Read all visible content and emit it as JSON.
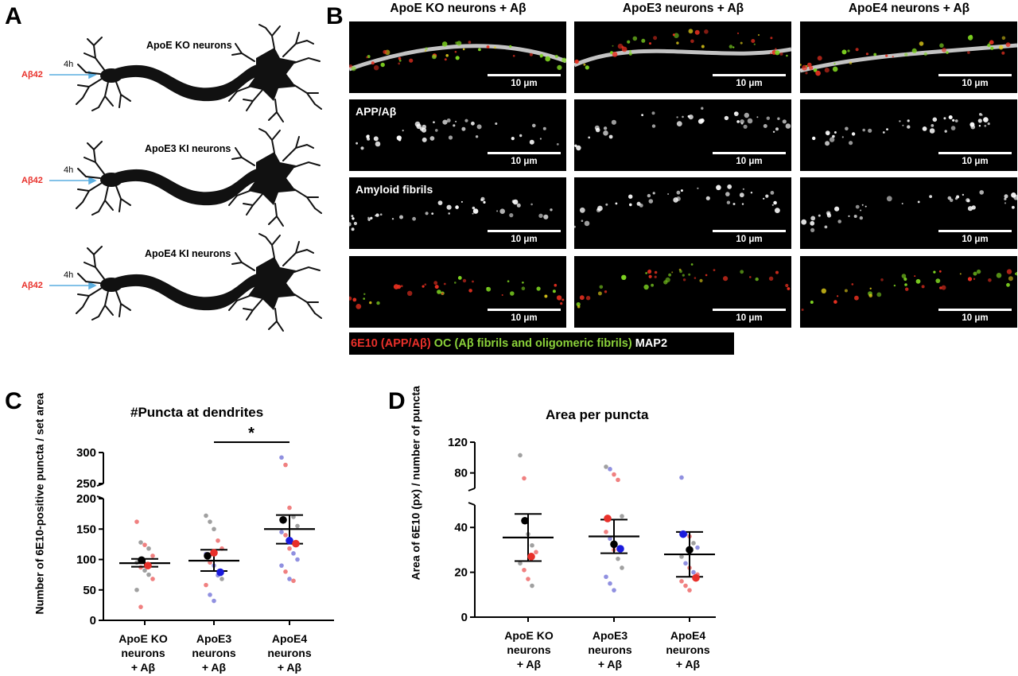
{
  "panelA": {
    "letter": "A",
    "rows": [
      {
        "treatment": "Aβ42",
        "time": "4h",
        "label": "ApoE KO neurons"
      },
      {
        "treatment": "Aβ42",
        "time": "4h",
        "label": "ApoE3 KI neurons"
      },
      {
        "treatment": "Aβ42",
        "time": "4h",
        "label": "ApoE4 KI neurons"
      }
    ]
  },
  "panelB": {
    "letter": "B",
    "columns": [
      "ApoE KO neurons + Aβ",
      "ApoE3 neurons + Aβ",
      "ApoE4 neurons + Aβ"
    ],
    "row_labels": [
      "",
      "APP/Aβ",
      "Amyloid fibrils",
      ""
    ],
    "scale_bar": "10 μm",
    "legend": [
      {
        "text": "6E10 (APP/Aβ)",
        "color": "#e8302a"
      },
      {
        "text": "OC (Aβ fibrils and oligomeric fibrils)",
        "color": "#8bd23a"
      },
      {
        "text": "MAP2",
        "color": "#ffffff"
      }
    ]
  },
  "panelC": {
    "letter": "C",
    "significance": "*",
    "chart_data": {
      "type": "scatter",
      "title": "#Puncta at dendrites",
      "ylabel": "Number of 6E10-positive puncta / set area",
      "categories": [
        "ApoE KO neurons + Aβ",
        "ApoE3 neurons + Aβ",
        "ApoE4 neurons + Aβ"
      ],
      "category_lines": [
        [
          "ApoE KO",
          "neurons",
          "+ Aβ"
        ],
        [
          "ApoE3",
          "neurons",
          "+ Aβ"
        ],
        [
          "ApoE4",
          "neurons",
          "+ Aβ"
        ]
      ],
      "y_axis_broken": true,
      "ylim_lower": [
        0,
        200
      ],
      "ylim_upper": [
        250,
        300
      ],
      "yticks_lower": [
        0,
        50,
        100,
        150,
        200
      ],
      "yticks_upper": [
        250,
        300
      ],
      "mean": [
        94,
        98,
        150
      ],
      "error_upper": [
        101,
        116,
        173
      ],
      "error_lower": [
        88,
        81,
        126
      ],
      "replicate_means": [
        [
          {
            "value": 99,
            "color": "#000000"
          },
          {
            "value": 90,
            "color": "#e8302a"
          }
        ],
        [
          {
            "value": 106,
            "color": "#000000"
          },
          {
            "value": 111,
            "color": "#e8302a"
          },
          {
            "value": 79,
            "color": "#1a1adc"
          }
        ],
        [
          {
            "value": 165,
            "color": "#000000"
          },
          {
            "value": 131,
            "color": "#1a1adc"
          },
          {
            "value": 126,
            "color": "#e8302a"
          }
        ]
      ],
      "points": [
        [
          {
            "value": 162,
            "color": "#f08080"
          },
          {
            "value": 128,
            "color": "#a0a0a0"
          },
          {
            "value": 124,
            "color": "#f08080"
          },
          {
            "value": 118,
            "color": "#a0a0a0"
          },
          {
            "value": 106,
            "color": "#f08080"
          },
          {
            "value": 95,
            "color": "#a0a0a0"
          },
          {
            "value": 87,
            "color": "#f08080"
          },
          {
            "value": 82,
            "color": "#a0a0a0"
          },
          {
            "value": 75,
            "color": "#a0a0a0"
          },
          {
            "value": 68,
            "color": "#f08080"
          },
          {
            "value": 50,
            "color": "#a0a0a0"
          },
          {
            "value": 22,
            "color": "#f08080"
          }
        ],
        [
          {
            "value": 172,
            "color": "#a0a0a0"
          },
          {
            "value": 162,
            "color": "#a0a0a0"
          },
          {
            "value": 150,
            "color": "#a0a0a0"
          },
          {
            "value": 131,
            "color": "#f08080"
          },
          {
            "value": 118,
            "color": "#f08080"
          },
          {
            "value": 109,
            "color": "#9090e0"
          },
          {
            "value": 95,
            "color": "#f08080"
          },
          {
            "value": 90,
            "color": "#9090e0"
          },
          {
            "value": 74,
            "color": "#9090e0"
          },
          {
            "value": 68,
            "color": "#a0a0a0"
          },
          {
            "value": 58,
            "color": "#f08080"
          },
          {
            "value": 42,
            "color": "#9090e0"
          },
          {
            "value": 32,
            "color": "#9090e0"
          }
        ],
        [
          {
            "value": 292,
            "color": "#9090e0"
          },
          {
            "value": 280,
            "color": "#f08080"
          },
          {
            "value": 185,
            "color": "#f08080"
          },
          {
            "value": 170,
            "color": "#a0a0a0"
          },
          {
            "value": 155,
            "color": "#a0a0a0"
          },
          {
            "value": 145,
            "color": "#9090e0"
          },
          {
            "value": 140,
            "color": "#f08080"
          },
          {
            "value": 118,
            "color": "#f08080"
          },
          {
            "value": 110,
            "color": "#9090e0"
          },
          {
            "value": 100,
            "color": "#9090e0"
          },
          {
            "value": 90,
            "color": "#9090e0"
          },
          {
            "value": 80,
            "color": "#f08080"
          },
          {
            "value": 68,
            "color": "#9090e0"
          },
          {
            "value": 65,
            "color": "#f08080"
          }
        ]
      ]
    }
  },
  "panelD": {
    "letter": "D",
    "chart_data": {
      "type": "scatter",
      "title": "Area per puncta",
      "ylabel": "Area of 6E10 (px) / number of puncta",
      "categories": [
        "ApoE KO neurons + Aβ",
        "ApoE3 neurons + Aβ",
        "ApoE4 neurons + Aβ"
      ],
      "category_lines": [
        [
          "ApoE KO",
          "neurons",
          "+ Aβ"
        ],
        [
          "ApoE3",
          "neurons",
          "+ Aβ"
        ],
        [
          "ApoE4",
          "neurons",
          "+ Aβ"
        ]
      ],
      "y_axis_broken": true,
      "ylim_lower": [
        0,
        50
      ],
      "ylim_upper": [
        60,
        120
      ],
      "yticks_lower": [
        0,
        20,
        40
      ],
      "yticks_upper": [
        80,
        120
      ],
      "mean": [
        35.5,
        36,
        28
      ],
      "error_upper": [
        46,
        43.5,
        38
      ],
      "error_lower": [
        25,
        28.5,
        18
      ],
      "replicate_means": [
        [
          {
            "value": 43,
            "color": "#000000"
          },
          {
            "value": 27,
            "color": "#e8302a"
          }
        ],
        [
          {
            "value": 44,
            "color": "#e8302a"
          },
          {
            "value": 32.5,
            "color": "#000000"
          },
          {
            "value": 30.5,
            "color": "#1a1adc"
          }
        ],
        [
          {
            "value": 37,
            "color": "#1a1adc"
          },
          {
            "value": 30,
            "color": "#000000"
          },
          {
            "value": 17.5,
            "color": "#e8302a"
          }
        ]
      ],
      "points": [
        [
          {
            "value": 103,
            "color": "#a0a0a0"
          },
          {
            "value": 73,
            "color": "#f08080"
          },
          {
            "value": 37,
            "color": "#a0a0a0"
          },
          {
            "value": 32,
            "color": "#a0a0a0"
          },
          {
            "value": 29,
            "color": "#f08080"
          },
          {
            "value": 24,
            "color": "#a0a0a0"
          },
          {
            "value": 21,
            "color": "#f08080"
          },
          {
            "value": 17,
            "color": "#f08080"
          },
          {
            "value": 14,
            "color": "#a0a0a0"
          }
        ],
        [
          {
            "value": 88,
            "color": "#a0a0a0"
          },
          {
            "value": 85,
            "color": "#9090e0"
          },
          {
            "value": 78,
            "color": "#f08080"
          },
          {
            "value": 71,
            "color": "#f08080"
          },
          {
            "value": 45,
            "color": "#a0a0a0"
          },
          {
            "value": 38,
            "color": "#f08080"
          },
          {
            "value": 35,
            "color": "#9090e0"
          },
          {
            "value": 30,
            "color": "#f08080"
          },
          {
            "value": 26,
            "color": "#a0a0a0"
          },
          {
            "value": 22,
            "color": "#a0a0a0"
          },
          {
            "value": 18,
            "color": "#9090e0"
          },
          {
            "value": 15,
            "color": "#9090e0"
          },
          {
            "value": 12,
            "color": "#9090e0"
          }
        ],
        [
          {
            "value": 74,
            "color": "#9090e0"
          },
          {
            "value": 37,
            "color": "#9090e0"
          },
          {
            "value": 36,
            "color": "#f08080"
          },
          {
            "value": 33,
            "color": "#a0a0a0"
          },
          {
            "value": 31,
            "color": "#9090e0"
          },
          {
            "value": 27,
            "color": "#a0a0a0"
          },
          {
            "value": 24,
            "color": "#9090e0"
          },
          {
            "value": 22,
            "color": "#f08080"
          },
          {
            "value": 20,
            "color": "#9090e0"
          },
          {
            "value": 19,
            "color": "#f08080"
          },
          {
            "value": 16,
            "color": "#f08080"
          },
          {
            "value": 14,
            "color": "#f08080"
          },
          {
            "value": 12,
            "color": "#f08080"
          }
        ]
      ]
    }
  }
}
